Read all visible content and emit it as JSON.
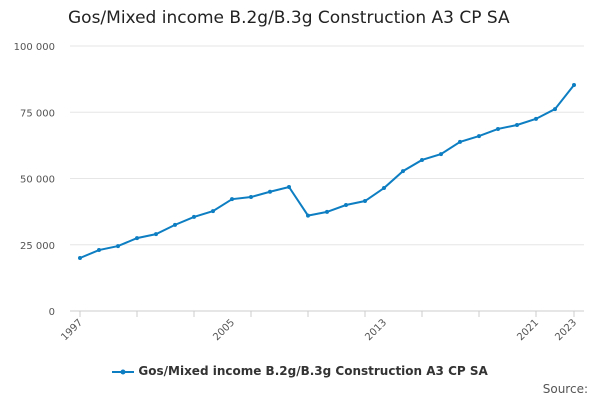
{
  "chart_data": {
    "type": "line",
    "title": "Gos/Mixed income B.2g/B.3g Construction A3 CP SA",
    "xlabel": "",
    "ylabel": "",
    "ylim": [
      0,
      100000
    ],
    "yticks": [
      0,
      25000,
      50000,
      75000,
      100000
    ],
    "ytick_labels": [
      "0",
      "25 000",
      "50 000",
      "75 000",
      "100 000"
    ],
    "xtick_labels": [
      "1997",
      "2005",
      "2013",
      "2021",
      "2023"
    ],
    "grid": true,
    "legend": "bottom",
    "color": "#0e7ec2",
    "x": [
      1997,
      1998,
      1999,
      2000,
      2001,
      2002,
      2003,
      2004,
      2005,
      2006,
      2007,
      2008,
      2009,
      2010,
      2011,
      2012,
      2013,
      2014,
      2015,
      2016,
      2017,
      2018,
      2019,
      2020,
      2021,
      2022,
      2023
    ],
    "series": [
      {
        "name": "Gos/Mixed income B.2g/B.3g Construction A3 CP SA",
        "values": [
          20000,
          23000,
          24500,
          27500,
          29000,
          32500,
          35500,
          37700,
          42200,
          43000,
          45000,
          46800,
          36000,
          37400,
          40000,
          41500,
          46400,
          52800,
          57000,
          59200,
          63800,
          66000,
          68700,
          70200,
          72500,
          76200,
          85300
        ]
      }
    ]
  },
  "source_label": "Source:"
}
